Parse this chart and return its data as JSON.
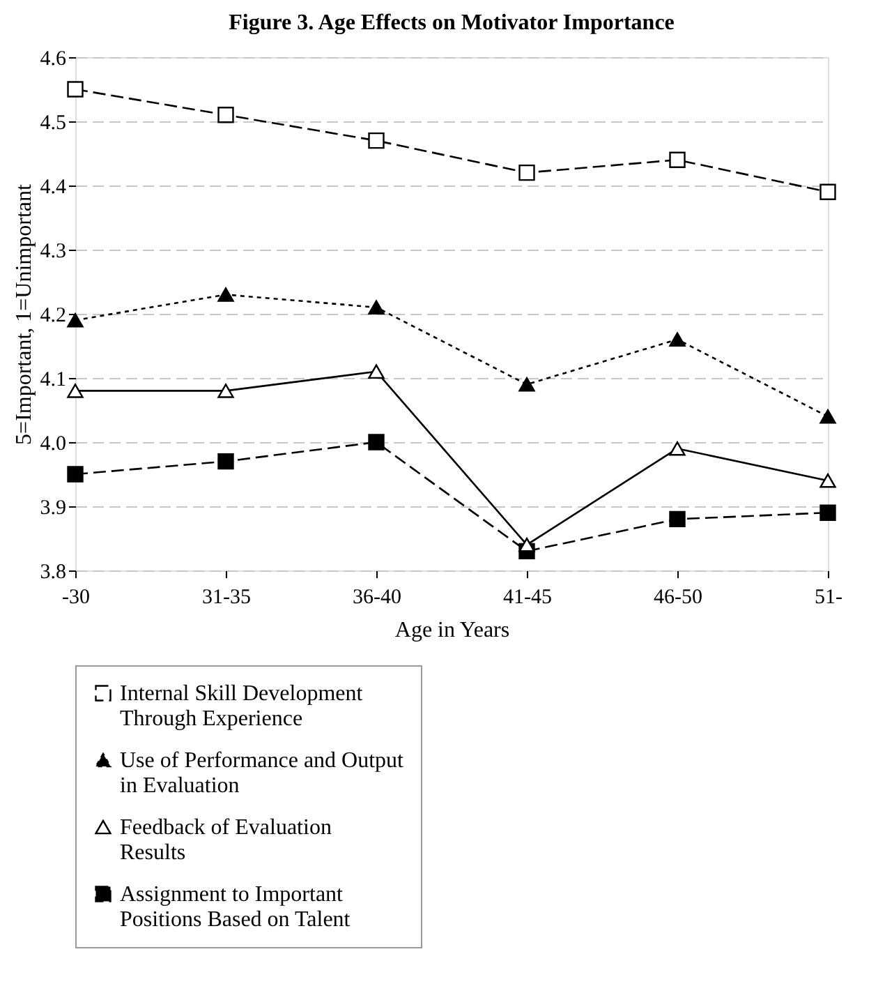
{
  "chart_data": {
    "type": "line",
    "title": "Figure 3.  Age Effects on Motivator Importance",
    "xlabel": "Age in Years",
    "ylabel": "5=Important, 1=Unimportant",
    "categories": [
      "-30",
      "31-35",
      "36-40",
      "41-45",
      "46-50",
      "51-"
    ],
    "series": [
      {
        "name": "Internal Skill Development Through Experience",
        "color": "#ffffff",
        "marker": "square",
        "line_style": "dashed",
        "values": [
          4.55,
          4.51,
          4.47,
          4.42,
          4.44,
          4.39
        ]
      },
      {
        "name": "Use of Performance and Output in Evaluation",
        "color": "#000000",
        "marker": "triangle",
        "line_style": "dotted",
        "values": [
          4.19,
          4.23,
          4.21,
          4.09,
          4.16,
          4.04
        ]
      },
      {
        "name": "Feedback of Evaluation Results",
        "color": "#ffffff",
        "marker": "triangle",
        "line_style": "solid",
        "values": [
          4.08,
          4.08,
          4.11,
          3.84,
          3.99,
          3.94
        ]
      },
      {
        "name": "Assignment to Important Positions Based on Talent",
        "color": "#000000",
        "marker": "square",
        "line_style": "dashed",
        "values": [
          3.95,
          3.97,
          4.0,
          3.83,
          3.88,
          3.89
        ]
      }
    ],
    "ylim": [
      3.8,
      4.6
    ],
    "yticks": [
      3.8,
      3.9,
      {
        "value": 4,
        "label": "4.0"
      },
      4.1,
      4.2,
      4.3,
      4.4,
      4.5,
      4.6
    ],
    "grid": "y",
    "legend": "bottom"
  }
}
